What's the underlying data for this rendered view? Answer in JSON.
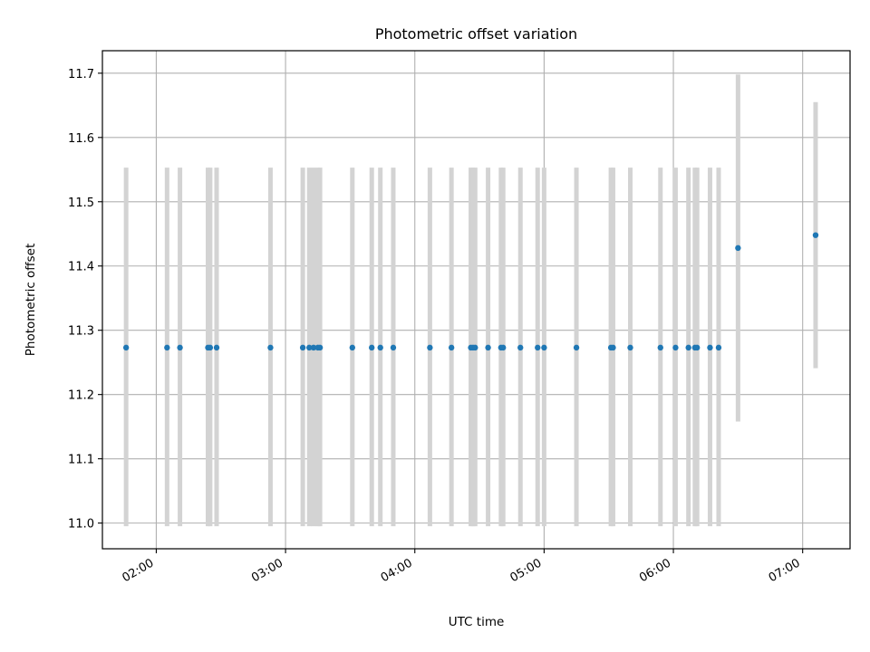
{
  "chart_data": {
    "type": "scatter",
    "title": "Photometric offset variation",
    "xlabel": "UTC time",
    "ylabel": "Photometric offset",
    "grid": true,
    "xlim": [
      "01:35",
      "07:22"
    ],
    "ylim": [
      10.96,
      11.735
    ],
    "x_tick_labels": [
      "02:00",
      "03:00",
      "04:00",
      "05:00",
      "06:00",
      "07:00"
    ],
    "y_tick_labels": [
      "11.0",
      "11.1",
      "11.2",
      "11.3",
      "11.4",
      "11.5",
      "11.6",
      "11.7"
    ],
    "colors": {
      "marker": "#1f77b4",
      "errorbar": "#d3d3d3",
      "grid": "#b0b0b0"
    },
    "points": [
      {
        "x": "01:46",
        "y": 11.273,
        "ymin": 10.995,
        "ymax": 11.553
      },
      {
        "x": "02:05",
        "y": 11.273,
        "ymin": 10.995,
        "ymax": 11.553
      },
      {
        "x": "02:11",
        "y": 11.273,
        "ymin": 10.995,
        "ymax": 11.553
      },
      {
        "x": "02:24",
        "y": 11.273,
        "ymin": 10.995,
        "ymax": 11.553
      },
      {
        "x": "02:25",
        "y": 11.273,
        "ymin": 10.995,
        "ymax": 11.553
      },
      {
        "x": "02:28",
        "y": 11.273,
        "ymin": 10.995,
        "ymax": 11.553
      },
      {
        "x": "02:53",
        "y": 11.273,
        "ymin": 10.995,
        "ymax": 11.553
      },
      {
        "x": "03:08",
        "y": 11.273,
        "ymin": 10.995,
        "ymax": 11.553
      },
      {
        "x": "03:11",
        "y": 11.273,
        "ymin": 10.995,
        "ymax": 11.553
      },
      {
        "x": "03:13",
        "y": 11.273,
        "ymin": 10.995,
        "ymax": 11.553
      },
      {
        "x": "03:15",
        "y": 11.273,
        "ymin": 10.995,
        "ymax": 11.553
      },
      {
        "x": "03:16",
        "y": 11.273,
        "ymin": 10.995,
        "ymax": 11.553
      },
      {
        "x": "03:31",
        "y": 11.273,
        "ymin": 10.995,
        "ymax": 11.553
      },
      {
        "x": "03:40",
        "y": 11.273,
        "ymin": 10.995,
        "ymax": 11.553
      },
      {
        "x": "03:44",
        "y": 11.273,
        "ymin": 10.995,
        "ymax": 11.553
      },
      {
        "x": "03:50",
        "y": 11.273,
        "ymin": 10.995,
        "ymax": 11.553
      },
      {
        "x": "04:07",
        "y": 11.273,
        "ymin": 10.995,
        "ymax": 11.553
      },
      {
        "x": "04:17",
        "y": 11.273,
        "ymin": 10.995,
        "ymax": 11.553
      },
      {
        "x": "04:26",
        "y": 11.273,
        "ymin": 10.995,
        "ymax": 11.553
      },
      {
        "x": "04:27",
        "y": 11.273,
        "ymin": 10.995,
        "ymax": 11.553
      },
      {
        "x": "04:28",
        "y": 11.273,
        "ymin": 10.995,
        "ymax": 11.553
      },
      {
        "x": "04:34",
        "y": 11.273,
        "ymin": 10.995,
        "ymax": 11.553
      },
      {
        "x": "04:40",
        "y": 11.273,
        "ymin": 10.995,
        "ymax": 11.553
      },
      {
        "x": "04:41",
        "y": 11.273,
        "ymin": 10.995,
        "ymax": 11.553
      },
      {
        "x": "04:49",
        "y": 11.273,
        "ymin": 10.995,
        "ymax": 11.553
      },
      {
        "x": "04:57",
        "y": 11.273,
        "ymin": 10.995,
        "ymax": 11.553
      },
      {
        "x": "05:00",
        "y": 11.273,
        "ymin": 10.995,
        "ymax": 11.553
      },
      {
        "x": "05:15",
        "y": 11.273,
        "ymin": 10.995,
        "ymax": 11.553
      },
      {
        "x": "05:31",
        "y": 11.273,
        "ymin": 10.995,
        "ymax": 11.553
      },
      {
        "x": "05:32",
        "y": 11.273,
        "ymin": 10.995,
        "ymax": 11.553
      },
      {
        "x": "05:40",
        "y": 11.273,
        "ymin": 10.995,
        "ymax": 11.553
      },
      {
        "x": "05:54",
        "y": 11.273,
        "ymin": 10.995,
        "ymax": 11.553
      },
      {
        "x": "06:01",
        "y": 11.273,
        "ymin": 10.995,
        "ymax": 11.553
      },
      {
        "x": "06:07",
        "y": 11.273,
        "ymin": 10.995,
        "ymax": 11.553
      },
      {
        "x": "06:10",
        "y": 11.273,
        "ymin": 10.995,
        "ymax": 11.553
      },
      {
        "x": "06:11",
        "y": 11.273,
        "ymin": 10.995,
        "ymax": 11.553
      },
      {
        "x": "06:17",
        "y": 11.273,
        "ymin": 10.995,
        "ymax": 11.553
      },
      {
        "x": "06:21",
        "y": 11.273,
        "ymin": 10.995,
        "ymax": 11.553
      },
      {
        "x": "06:30",
        "y": 11.428,
        "ymin": 11.158,
        "ymax": 11.698
      },
      {
        "x": "07:06",
        "y": 11.448,
        "ymin": 11.241,
        "ymax": 11.655
      }
    ]
  }
}
